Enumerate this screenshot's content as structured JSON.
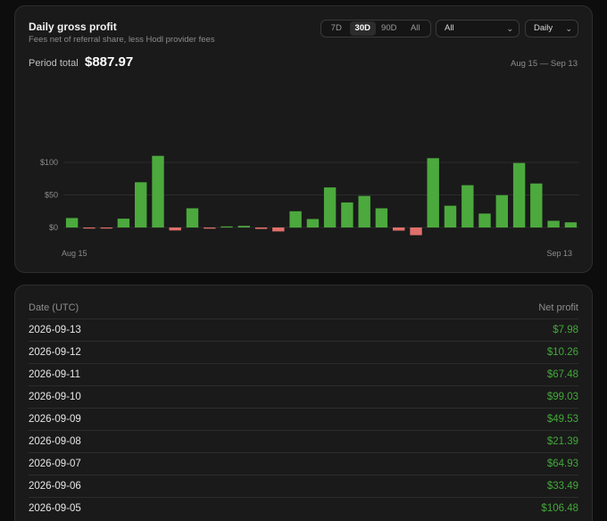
{
  "chart_card": {
    "title": "Daily gross profit",
    "subtitle": "Fees net of referral share, less Hodl provider fees",
    "range_buttons": [
      "7D",
      "30D",
      "90D",
      "All"
    ],
    "active_range": "30D",
    "filter_value": "All",
    "interval_value": "Daily",
    "period_total_label": "Period total",
    "period_total_value": "$887.97",
    "date_range": "Aug 15 — Sep 13"
  },
  "colors": {
    "positive": "#4ca93d",
    "negative": "#e0706b",
    "grid": "#2b2b2b",
    "text_green": "#43a83a"
  },
  "chart_data": {
    "type": "bar",
    "ylim": [
      -15,
      110
    ],
    "yticks": [
      0,
      50,
      100
    ],
    "ytick_labels": [
      "$0",
      "$50",
      "$100"
    ],
    "x_start_label": "Aug 15",
    "x_end_label": "Sep 13",
    "values": [
      14.5,
      -1.5,
      -1.2,
      13.5,
      69.5,
      110,
      -4.5,
      29.5,
      -1.8,
      0.8,
      2.5,
      -2.2,
      -6,
      25,
      13,
      61.5,
      38.5,
      48.5,
      29.5,
      -4.8,
      -11.8,
      106.48,
      33.49,
      64.93,
      21.39,
      49.53,
      99.03,
      67.48,
      10.26,
      7.98
    ]
  },
  "table": {
    "headers": {
      "date": "Date (UTC)",
      "profit": "Net profit"
    },
    "rows": [
      {
        "date": "2026-09-13",
        "profit": "$7.98"
      },
      {
        "date": "2026-09-12",
        "profit": "$10.26"
      },
      {
        "date": "2026-09-11",
        "profit": "$67.48"
      },
      {
        "date": "2026-09-10",
        "profit": "$99.03"
      },
      {
        "date": "2026-09-09",
        "profit": "$49.53"
      },
      {
        "date": "2026-09-08",
        "profit": "$21.39"
      },
      {
        "date": "2026-09-07",
        "profit": "$64.93"
      },
      {
        "date": "2026-09-06",
        "profit": "$33.49"
      },
      {
        "date": "2026-09-05",
        "profit": "$106.48"
      }
    ]
  }
}
